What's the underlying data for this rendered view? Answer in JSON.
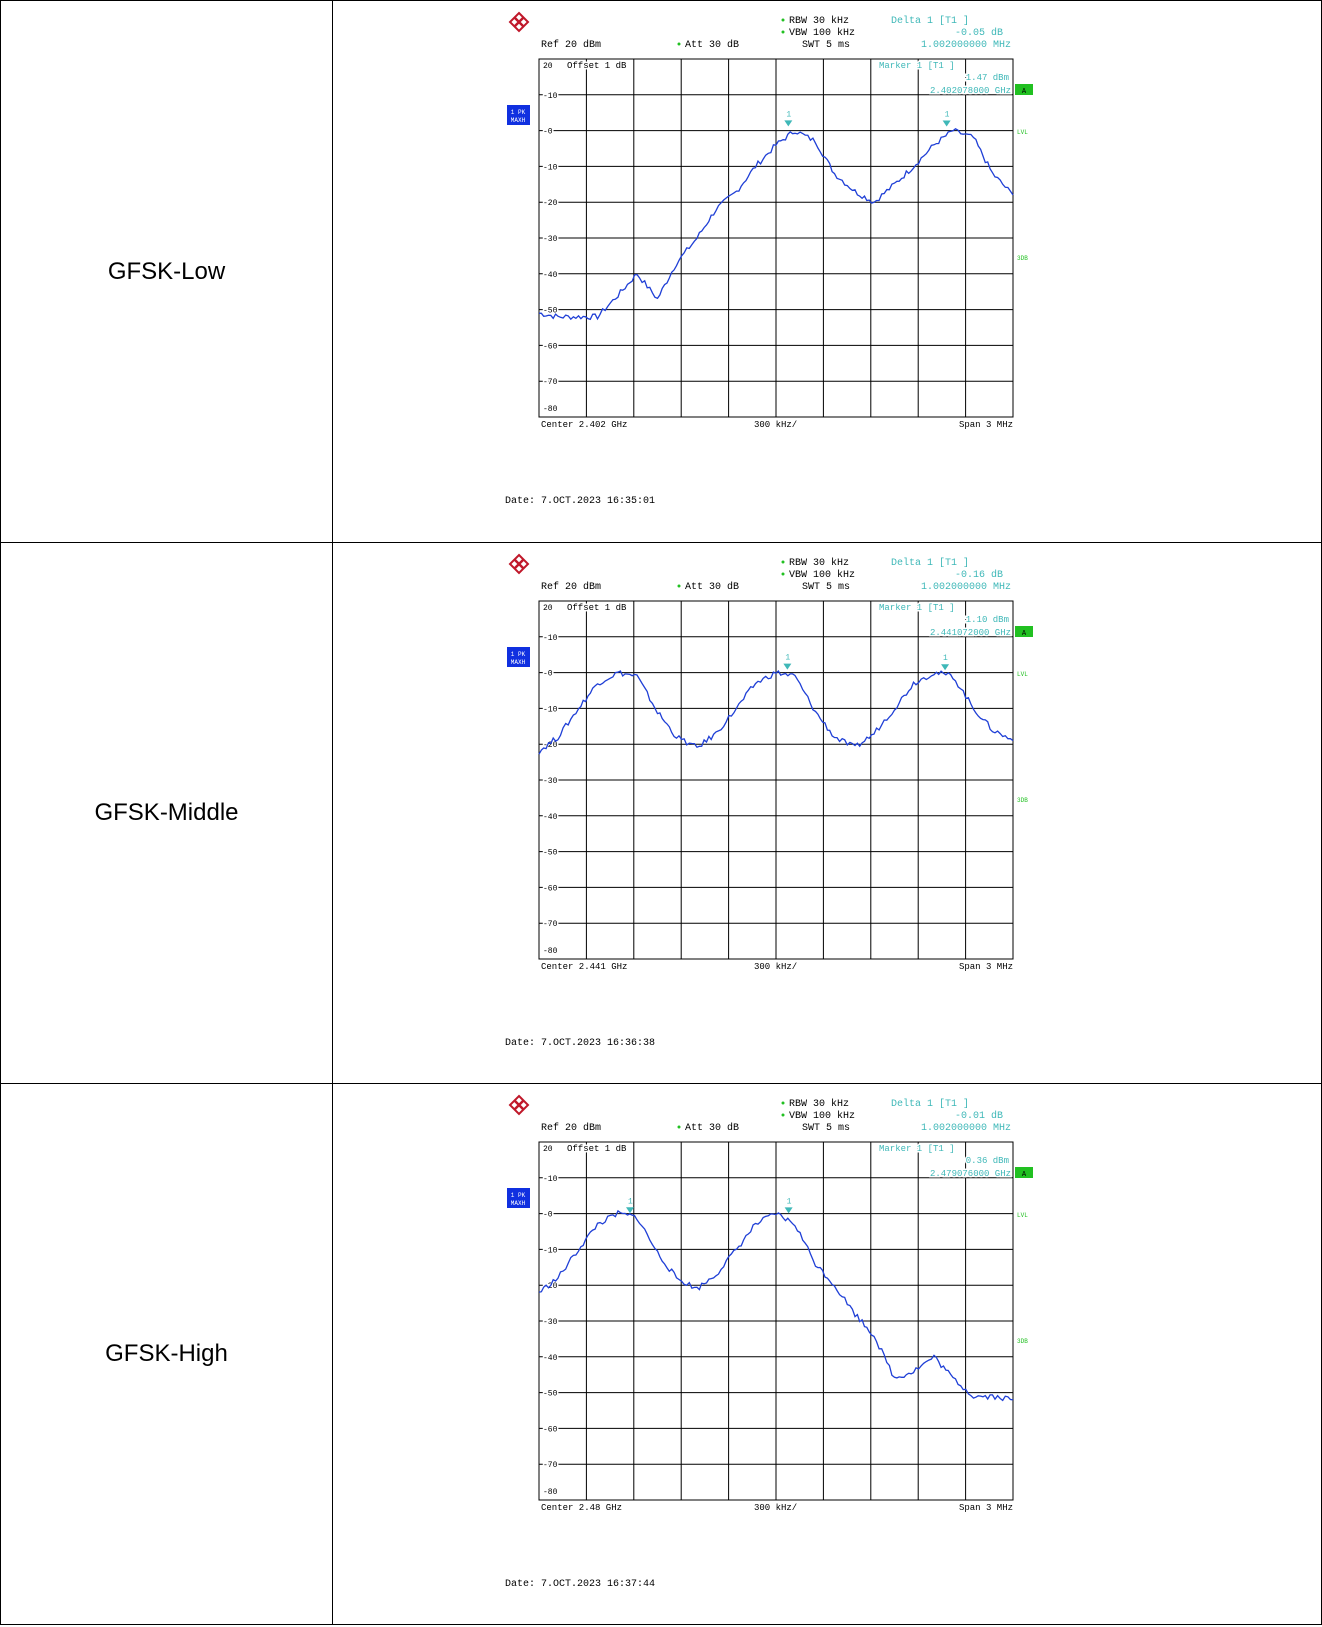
{
  "rows": [
    {
      "label": "GFSK-Low",
      "ref": "Ref  20 dBm",
      "att": "Att  30 dB",
      "rbw": "RBW 30 kHz",
      "vbw": "VBW 100 kHz",
      "swt": "SWT 5 ms",
      "delta_title": "Delta 1 [T1 ]",
      "delta_level": "-0.05 dB",
      "delta_freq": "1.002000000 MHz",
      "offset_label": "Offset  1 dB",
      "marker_title": "Marker 1 [T1 ]",
      "marker_level": "1.47 dBm",
      "marker_freq": "2.402078000 GHz",
      "center": "Center 2.402 GHz",
      "per_div": "300 kHz/",
      "span": "Span 3 MHz",
      "date": "Date: 7.OCT.2023  16:35:01"
    },
    {
      "label": "GFSK-Middle",
      "ref": "Ref  20 dBm",
      "att": "Att  30 dB",
      "rbw": "RBW 30 kHz",
      "vbw": "VBW 100 kHz",
      "swt": "SWT 5 ms",
      "delta_title": "Delta 1 [T1 ]",
      "delta_level": "-0.16 dB",
      "delta_freq": "1.002000000 MHz",
      "offset_label": "Offset  1 dB",
      "marker_title": "Marker 1 [T1 ]",
      "marker_level": "1.10 dBm",
      "marker_freq": "2.441072000 GHz",
      "center": "Center 2.441 GHz",
      "per_div": "300 kHz/",
      "span": "Span 3 MHz",
      "date": "Date: 7.OCT.2023  16:36:38"
    },
    {
      "label": "GFSK-High",
      "ref": "Ref  20 dBm",
      "att": "Att  30 dB",
      "rbw": "RBW 30 kHz",
      "vbw": "VBW 100 kHz",
      "swt": "SWT 5 ms",
      "delta_title": "Delta 1 [T1 ]",
      "delta_level": "-0.01 dB",
      "delta_freq": "1.002000000 MHz",
      "offset_label": "Offset  1 dB",
      "marker_title": "Marker 1 [T1 ]",
      "marker_level": "0.36 dBm",
      "marker_freq": "2.479076000 GHz",
      "center": "Center 2.48 GHz",
      "per_div": "300 kHz/",
      "span": "Span 3 MHz",
      "date": "Date: 7.OCT.2023  16:37:44"
    }
  ],
  "side_labels": {
    "trace": "1 PK",
    "mode": "MAXH",
    "a": "A",
    "lvl": "LVL",
    "threedb": "3DB"
  },
  "colors": {
    "trace": "#1f3fd6",
    "cyan": "#3fb8b8",
    "green": "#21c021",
    "grid": "#000000",
    "badge": "#1030e0"
  },
  "chart_data": [
    {
      "type": "line",
      "title": "GFSK-Low",
      "xlabel": "",
      "ylabel": "",
      "xlim": [
        2.4005,
        2.4035
      ],
      "ylim": [
        -80,
        20
      ],
      "yticks": [
        20,
        10,
        0,
        -10,
        -20,
        -30,
        -40,
        -50,
        -60,
        -70,
        -80
      ],
      "grid": true,
      "markers": [
        {
          "name": "1",
          "x": 2.402078,
          "y": 1.47
        },
        {
          "name": "1",
          "x": 2.40308,
          "y": 1.42
        }
      ],
      "series": [
        {
          "x": [
            2.4005,
            2.40062,
            2.40075,
            2.40087,
            2.401,
            2.40112,
            2.40125,
            2.40137,
            2.4015,
            2.40162,
            2.40175,
            2.40187,
            2.402,
            2.40212,
            2.40225,
            2.40237,
            2.4025,
            2.40262,
            2.40275,
            2.40287,
            2.403,
            2.40312,
            2.40325,
            2.40337,
            2.4035
          ],
          "values": [
            -51,
            -52,
            -52,
            -52,
            -46,
            -40,
            -47,
            -37,
            -30,
            -22,
            -17,
            -10,
            -4,
            0,
            -3,
            -12,
            -17,
            -20,
            -15,
            -10,
            -4,
            0,
            -2,
            -12,
            -18
          ]
        }
      ]
    },
    {
      "type": "line",
      "title": "GFSK-Middle",
      "xlabel": "",
      "ylabel": "",
      "xlim": [
        2.4395,
        2.4425
      ],
      "ylim": [
        -80,
        20
      ],
      "yticks": [
        20,
        10,
        0,
        -10,
        -20,
        -30,
        -40,
        -50,
        -60,
        -70,
        -80
      ],
      "grid": true,
      "markers": [
        {
          "name": "1",
          "x": 2.441072,
          "y": 1.1
        },
        {
          "name": "1",
          "x": 2.44207,
          "y": 0.94
        }
      ],
      "series": [
        {
          "x": [
            2.4395,
            2.43962,
            2.43975,
            2.43987,
            2.44,
            2.44012,
            2.44025,
            2.44037,
            2.4405,
            2.44062,
            2.44075,
            2.44087,
            2.441,
            2.44112,
            2.44125,
            2.44137,
            2.4415,
            2.44162,
            2.44175,
            2.44187,
            2.442,
            2.44212,
            2.44225,
            2.44237,
            2.4425
          ],
          "values": [
            -22,
            -18,
            -10,
            -3,
            0,
            -1,
            -11,
            -18,
            -21,
            -17,
            -10,
            -3,
            0,
            -1,
            -11,
            -18,
            -21,
            -17,
            -10,
            -3,
            0,
            -1,
            -10,
            -16,
            -19
          ]
        }
      ]
    },
    {
      "type": "line",
      "title": "GFSK-High",
      "xlabel": "",
      "ylabel": "",
      "xlim": [
        2.4785,
        2.4815
      ],
      "ylim": [
        -80,
        20
      ],
      "yticks": [
        20,
        10,
        0,
        -10,
        -20,
        -30,
        -40,
        -50,
        -60,
        -70,
        -80
      ],
      "grid": true,
      "markers": [
        {
          "name": "1",
          "x": 2.479076,
          "y": 0.36
        },
        {
          "name": "1",
          "x": 2.48008,
          "y": 0.35
        }
      ],
      "series": [
        {
          "x": [
            2.4785,
            2.47862,
            2.47875,
            2.47887,
            2.479,
            2.47912,
            2.47925,
            2.47937,
            2.4795,
            2.47962,
            2.47975,
            2.47987,
            2.48,
            2.48012,
            2.48025,
            2.48037,
            2.4805,
            2.48062,
            2.48075,
            2.48087,
            2.481,
            2.48112,
            2.48125,
            2.48137,
            2.4815
          ],
          "values": [
            -22,
            -18,
            -10,
            -3,
            0,
            -1,
            -11,
            -18,
            -21,
            -17,
            -10,
            -3,
            0,
            -3,
            -14,
            -20,
            -28,
            -34,
            -46,
            -44,
            -40,
            -46,
            -51,
            -51,
            -52
          ]
        }
      ]
    }
  ]
}
